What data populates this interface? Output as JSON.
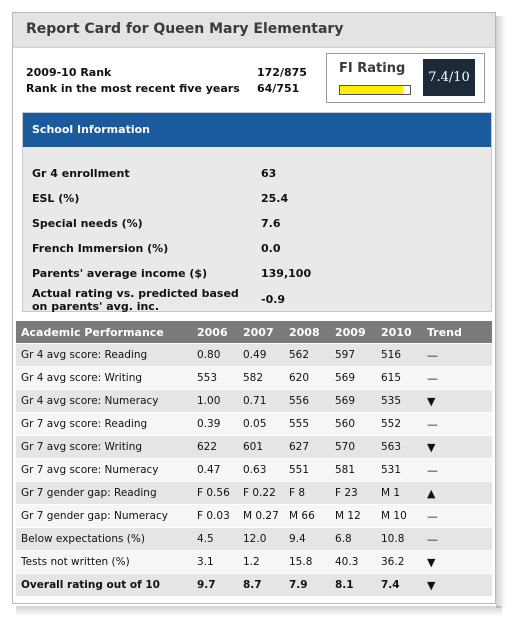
{
  "title": "Report Card for Queen Mary Elementary",
  "ranks": [
    {
      "label": "2009-10 Rank",
      "value": "172/875"
    },
    {
      "label": "Rank in the most recent five years",
      "value": "64/751"
    }
  ],
  "fi_rating": {
    "label": "FI Rating",
    "score": "7.4/10",
    "fill_fraction": 0.9,
    "fill_color": "#ffee00"
  },
  "school_info": {
    "header": "School Information",
    "rows": [
      {
        "label": "Gr 4 enrollment",
        "value": "63"
      },
      {
        "label": "ESL (%)",
        "value": "25.4"
      },
      {
        "label": "Special needs (%)",
        "value": "7.6"
      },
      {
        "label": "French Immersion (%)",
        "value": "0.0"
      },
      {
        "label": "Parents' average income ($)",
        "value": "139,100"
      },
      {
        "label": "Actual rating vs. predicted based on parents' avg. inc.",
        "value": "-0.9"
      }
    ]
  },
  "academic": {
    "headers": [
      "Academic Performance",
      "2006",
      "2007",
      "2008",
      "2009",
      "2010",
      "Trend"
    ],
    "rows": [
      {
        "label": "Gr 4 avg score: Reading",
        "values": [
          "0.80",
          "0.49",
          "562",
          "597",
          "516"
        ],
        "trend": "—"
      },
      {
        "label": "Gr 4 avg score: Writing",
        "values": [
          "553",
          "582",
          "620",
          "569",
          "615"
        ],
        "trend": "—"
      },
      {
        "label": "Gr 4 avg score: Numeracy",
        "values": [
          "1.00",
          "0.71",
          "556",
          "569",
          "535"
        ],
        "trend": "▼"
      },
      {
        "label": "Gr 7 avg score: Reading",
        "values": [
          "0.39",
          "0.05",
          "555",
          "560",
          "552"
        ],
        "trend": "—"
      },
      {
        "label": "Gr 7 avg score: Writing",
        "values": [
          "622",
          "601",
          "627",
          "570",
          "563"
        ],
        "trend": "▼"
      },
      {
        "label": "Gr 7 avg score: Numeracy",
        "values": [
          "0.47",
          "0.63",
          "551",
          "581",
          "531"
        ],
        "trend": "—"
      },
      {
        "label": "Gr 7 gender gap: Reading",
        "values": [
          "F 0.56",
          "F 0.22",
          "F 8",
          "F 23",
          "M 1"
        ],
        "trend": "▲"
      },
      {
        "label": "Gr 7 gender gap: Numeracy",
        "values": [
          "F 0.03",
          "M 0.27",
          "M 66",
          "M 12",
          "M 10"
        ],
        "trend": "—"
      },
      {
        "label": "Below expectations (%)",
        "values": [
          "4.5",
          "12.0",
          "9.4",
          "6.8",
          "10.8"
        ],
        "trend": "—"
      },
      {
        "label": "Tests not written (%)",
        "values": [
          "3.1",
          "1.2",
          "15.8",
          "40.3",
          "36.2"
        ],
        "trend": "▼"
      },
      {
        "label": "Overall rating out of 10",
        "values": [
          "9.7",
          "8.7",
          "7.9",
          "8.1",
          "7.4"
        ],
        "trend": "▼"
      }
    ]
  }
}
